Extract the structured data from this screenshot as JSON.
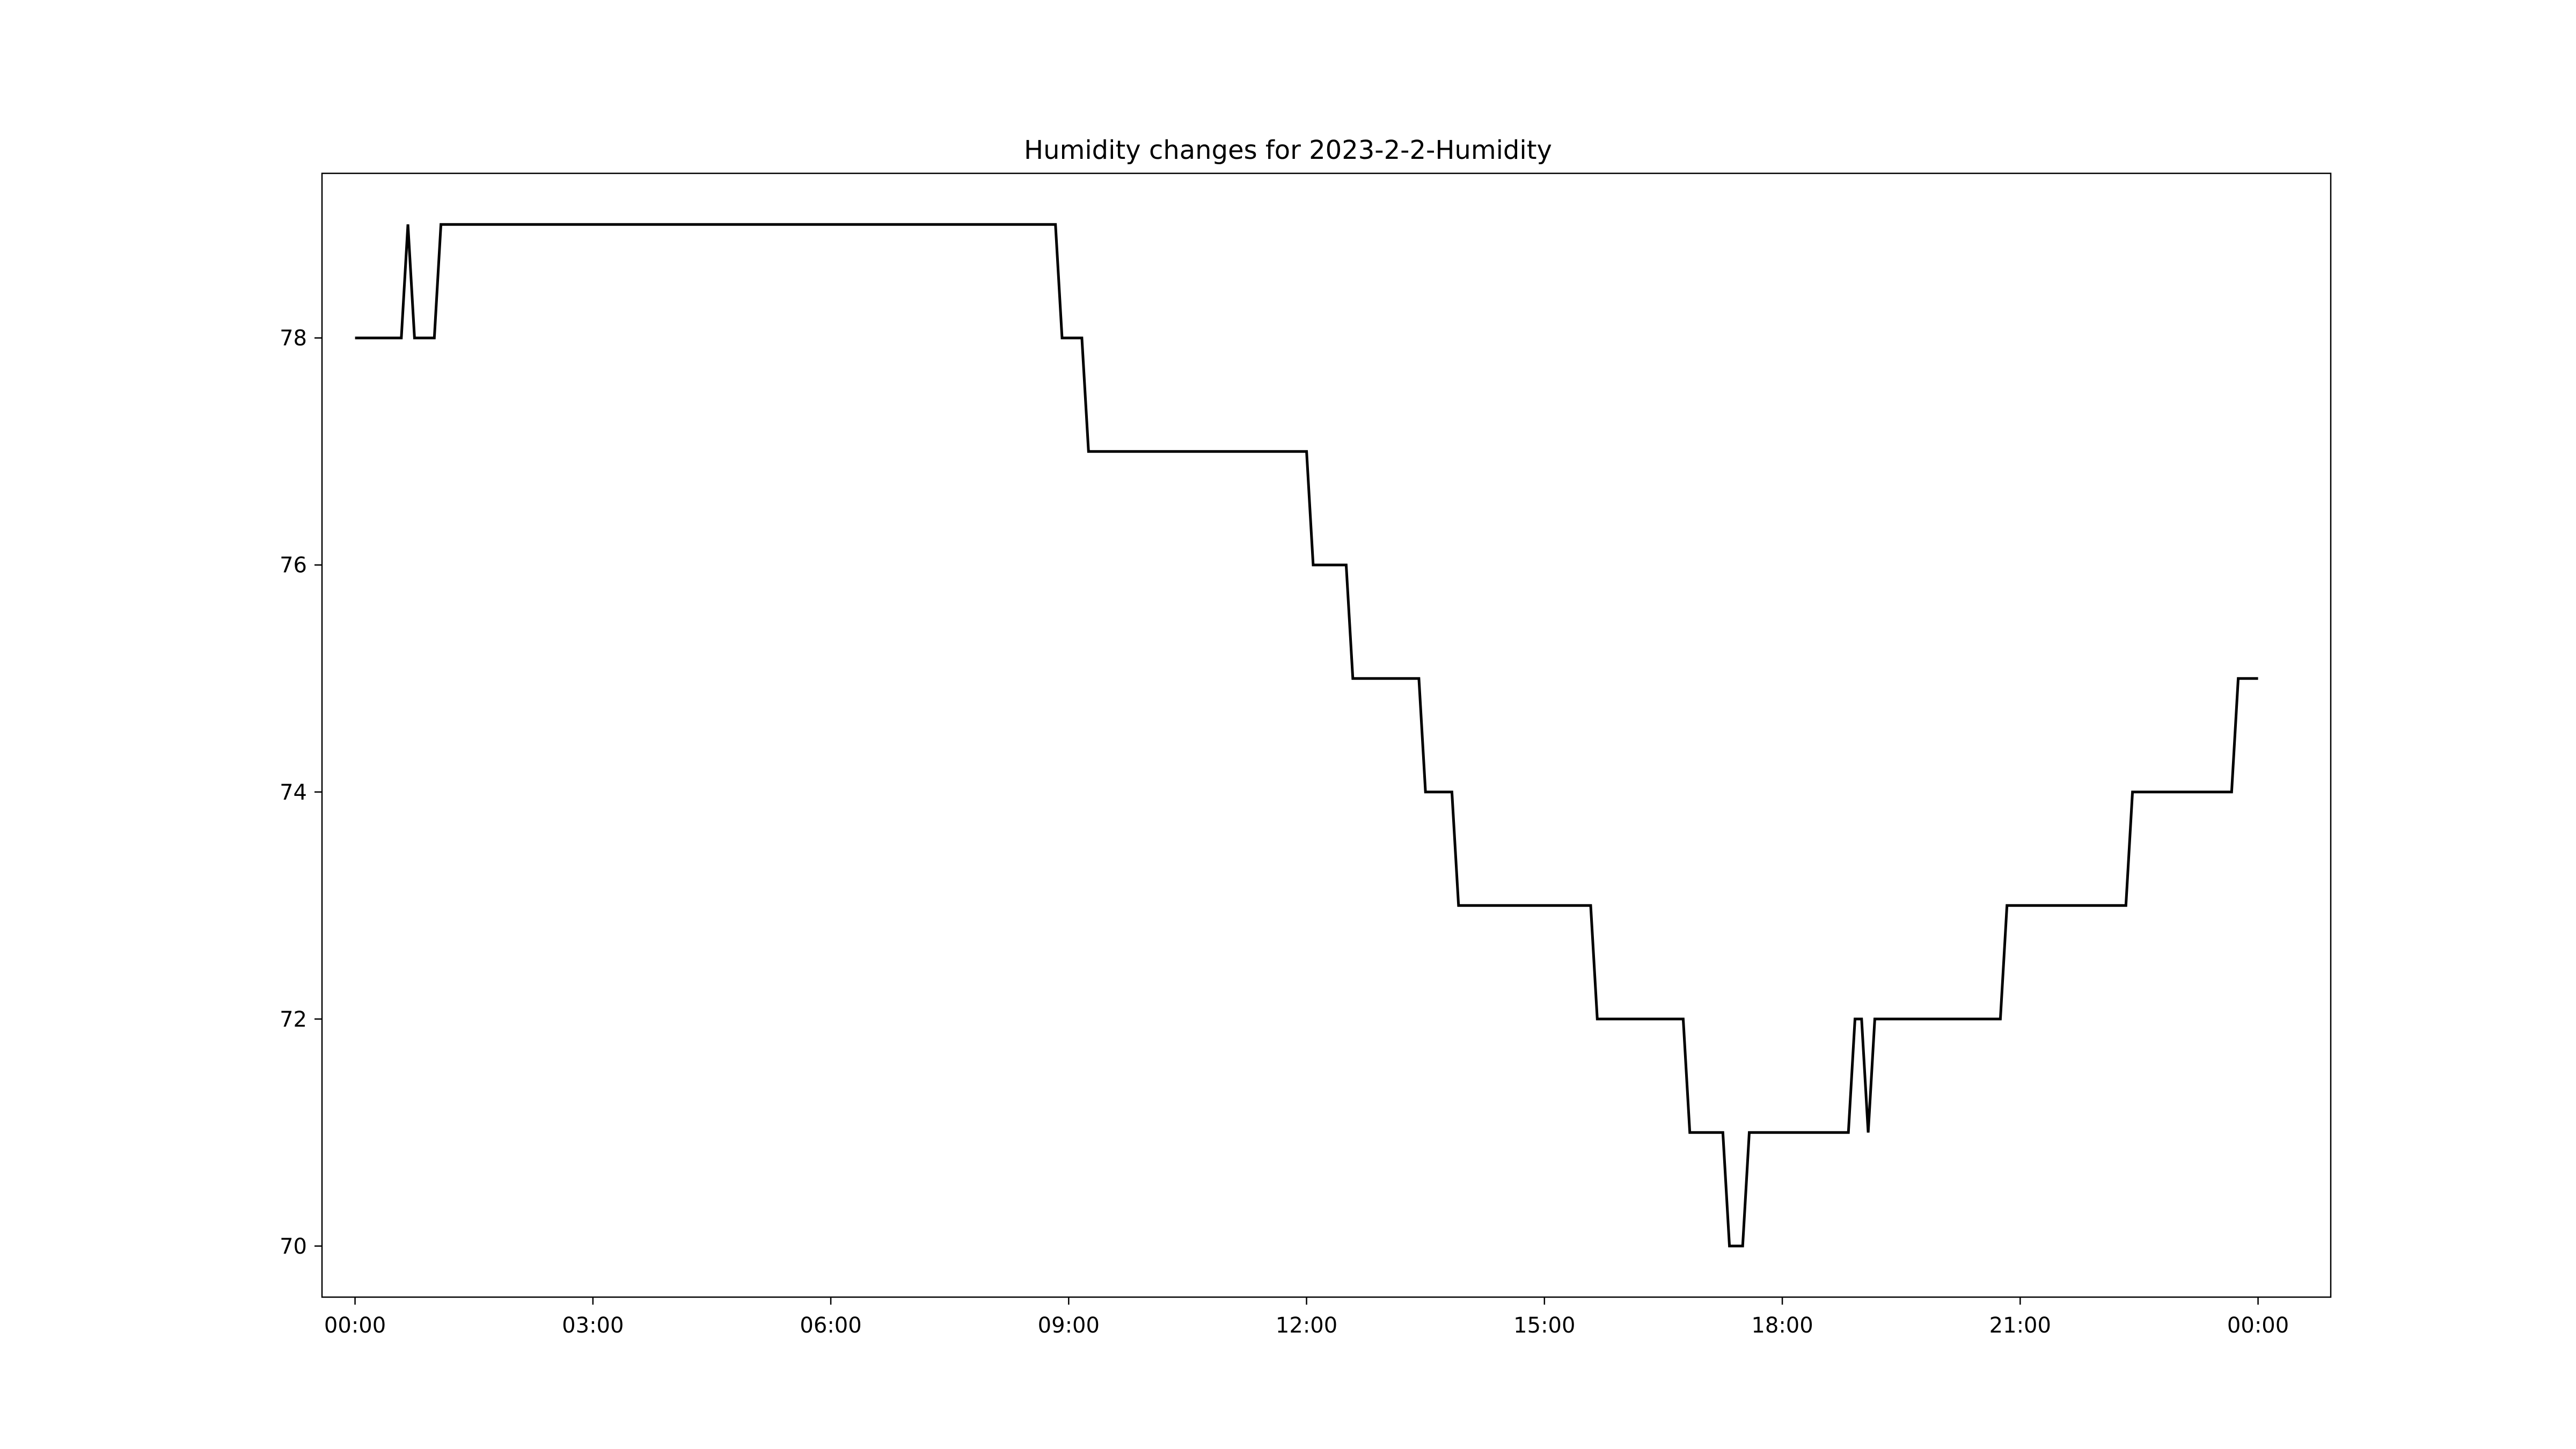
{
  "chart_data": {
    "type": "line",
    "title": "Humidity changes for 2023-2-2-Humidity",
    "xlabel": "",
    "ylabel": "",
    "x_unit": "time of day",
    "xlim": [
      "23:35",
      "00:55 next day"
    ],
    "ylim": [
      69.55,
      79.45
    ],
    "grid": false,
    "legend": "none",
    "x_ticks": [
      "00:00",
      "03:00",
      "06:00",
      "09:00",
      "12:00",
      "15:00",
      "18:00",
      "21:00",
      "00:00"
    ],
    "y_ticks": [
      "70",
      "72",
      "74",
      "76",
      "78"
    ],
    "y_tick_values": [
      70,
      72,
      74,
      76,
      78
    ],
    "colors": {
      "line": "#000000",
      "axes": "#000000",
      "background": "#ffffff"
    },
    "series": [
      {
        "x": [
          "00:00",
          "00:35",
          "00:40",
          "00:45",
          "01:00",
          "01:05",
          "08:50",
          "08:55",
          "09:10",
          "09:15",
          "12:00",
          "12:05",
          "12:30",
          "12:35",
          "13:25",
          "13:30",
          "13:50",
          "13:55",
          "15:35",
          "15:40",
          "16:45",
          "16:50",
          "17:15",
          "17:20",
          "17:30",
          "17:35",
          "18:50",
          "18:55",
          "19:00",
          "19:05",
          "19:10",
          "20:45",
          "20:50",
          "22:20",
          "22:25",
          "23:40",
          "23:45",
          "00:00 next day"
        ],
        "y": [
          78,
          78,
          79,
          78,
          78,
          79,
          79,
          78,
          78,
          77,
          77,
          76,
          76,
          75,
          75,
          74,
          74,
          73,
          73,
          72,
          72,
          71,
          71,
          70,
          70,
          71,
          71,
          72,
          72,
          71,
          72,
          72,
          73,
          73,
          74,
          74,
          75,
          75
        ]
      }
    ]
  }
}
